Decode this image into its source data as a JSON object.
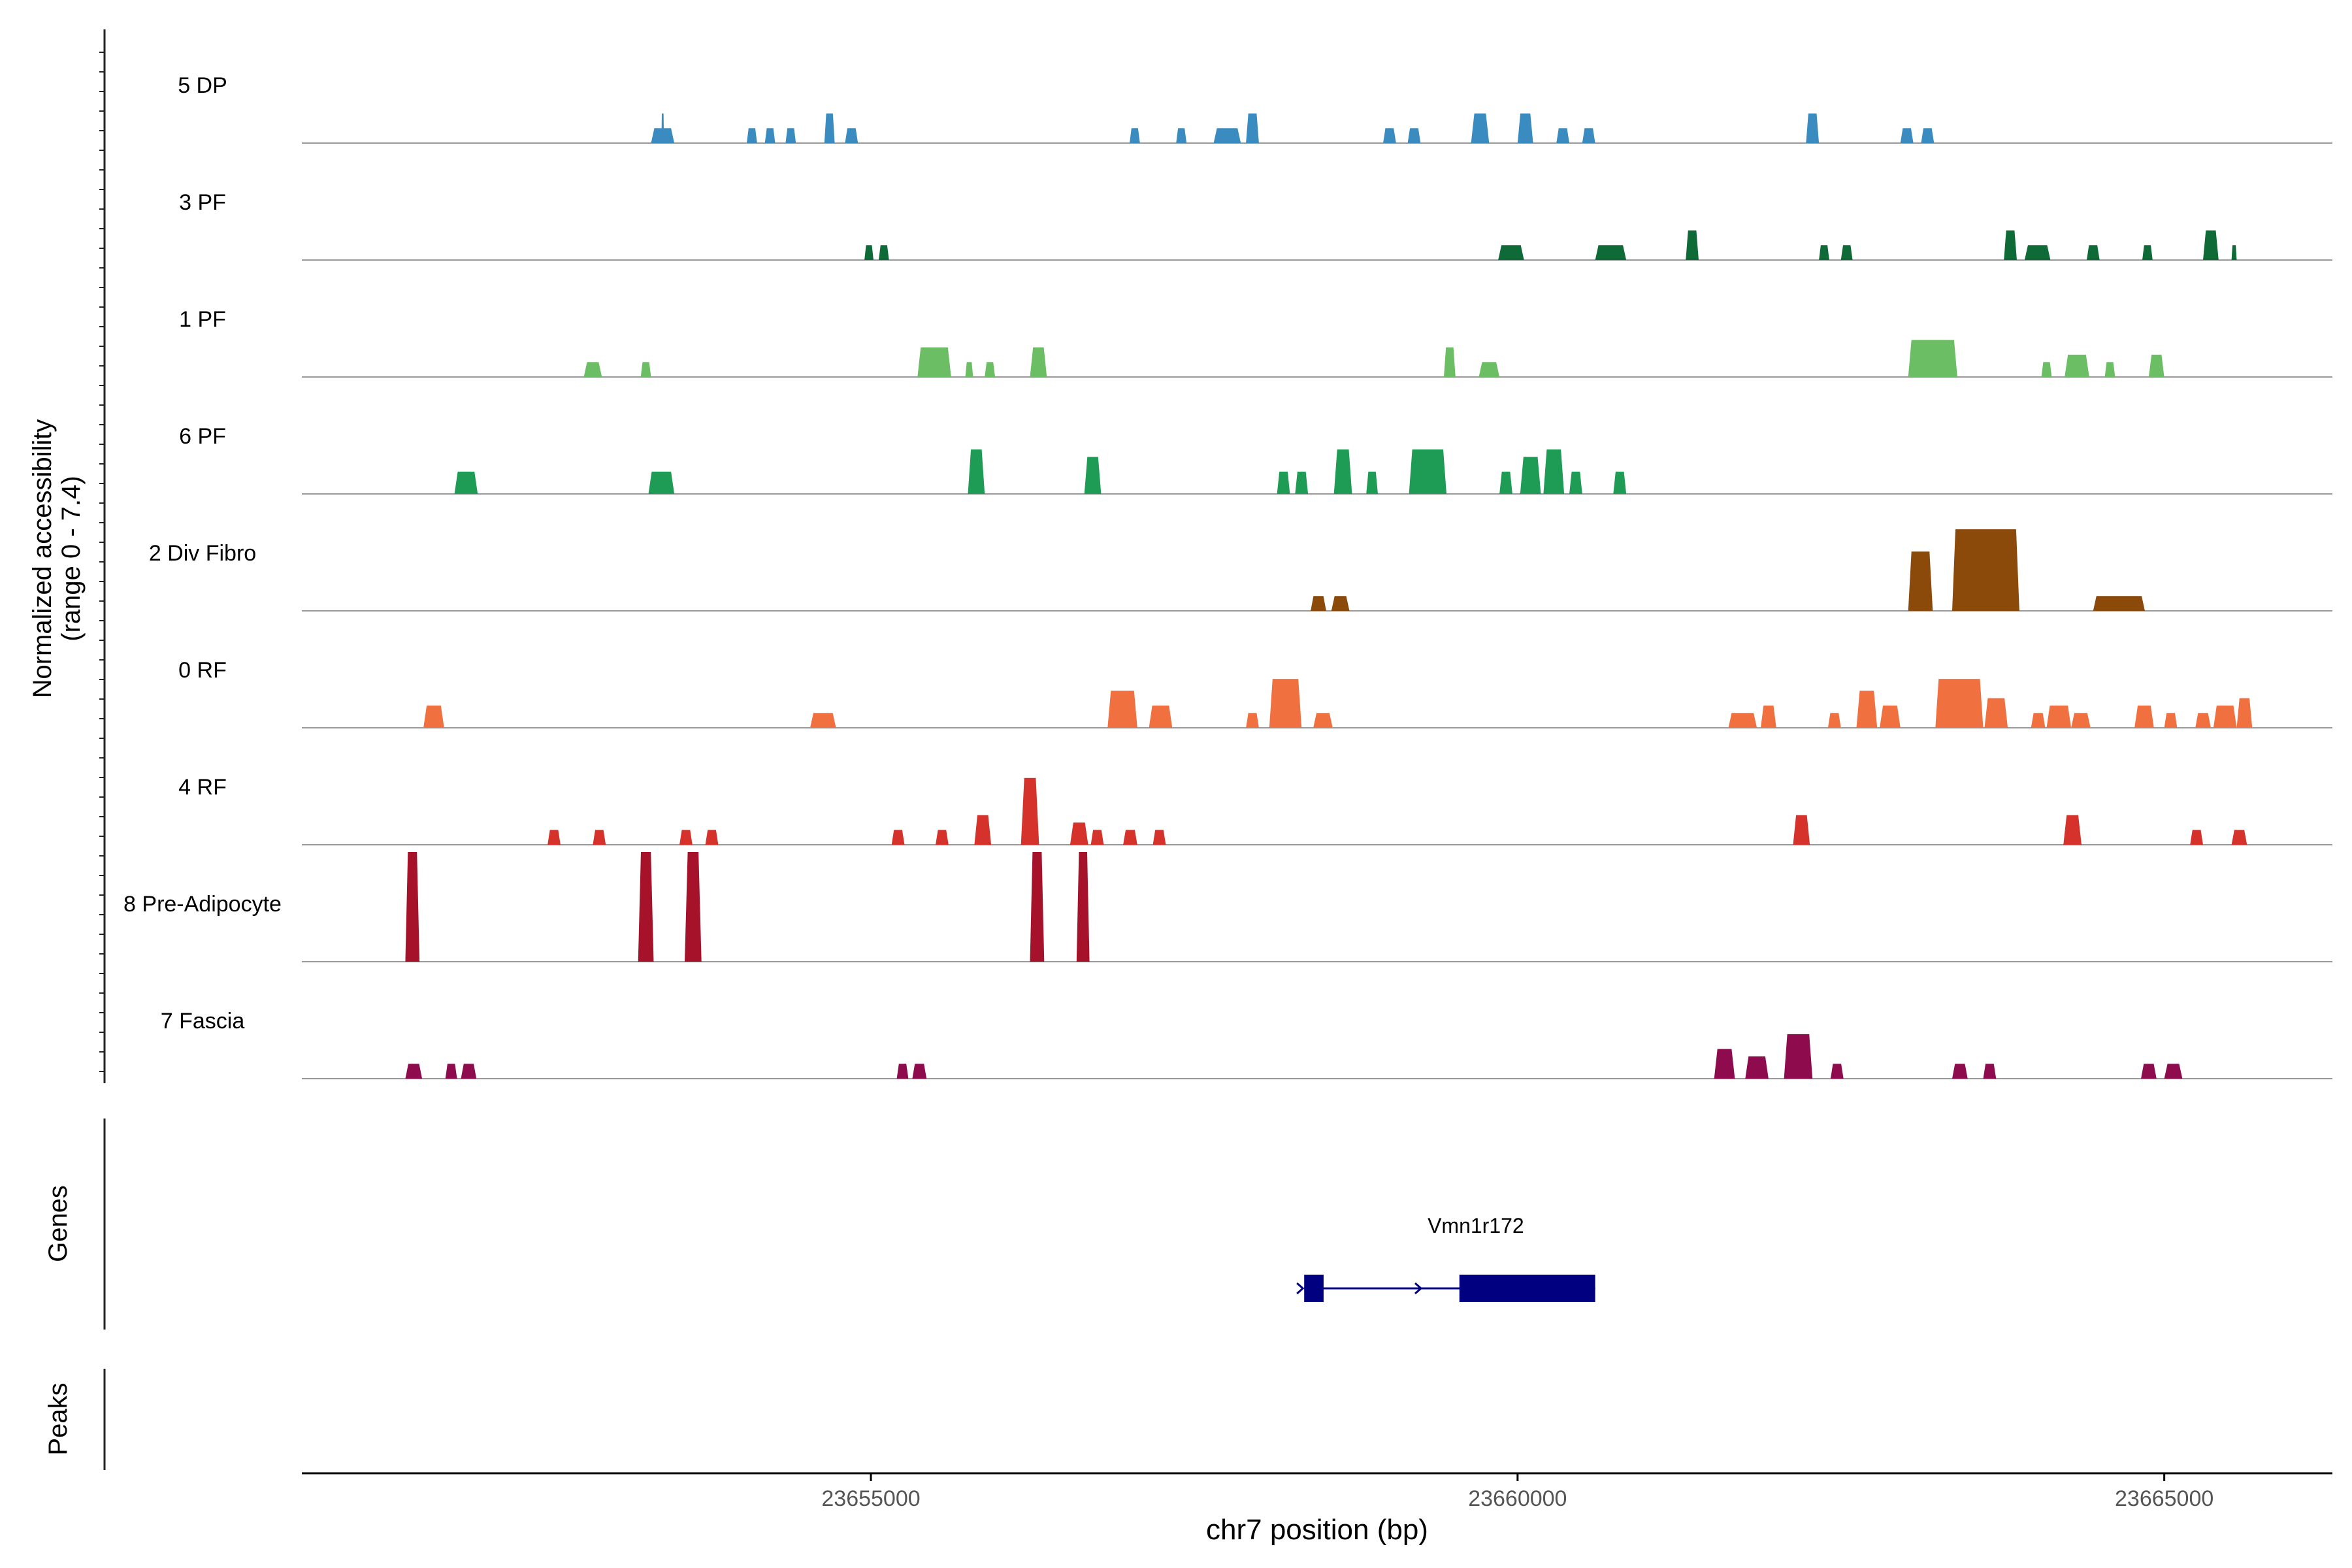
{
  "chart_data": {
    "type": "coverage-track",
    "title": "",
    "xlabel": "chr7 position (bp)",
    "xlim": [
      23650600,
      23666300
    ],
    "x_ticks": [
      {
        "value": 23655000,
        "label": "23655000"
      },
      {
        "value": 23660000,
        "label": "23660000"
      },
      {
        "value": 23665000,
        "label": "23665000"
      }
    ],
    "coverage_ylabel": "Normalized accessibility",
    "coverage_ylabel_range": "(range 0 - 7.4)",
    "ymax": 7.4,
    "genes_label": "Genes",
    "peaks_label": "Peaks",
    "series": [
      {
        "name": "5 DP",
        "color": "#3A8CC0",
        "peaks": [
          [
            23653300,
            23653480,
            1.0
          ],
          [
            23653380,
            23653400,
            2.0
          ],
          [
            23654040,
            23654120,
            1.0
          ],
          [
            23654180,
            23654260,
            1.0
          ],
          [
            23654340,
            23654420,
            1.0
          ],
          [
            23654640,
            23654720,
            2.0
          ],
          [
            23654800,
            23654900,
            1.0
          ],
          [
            23657000,
            23657080,
            1.0
          ],
          [
            23657360,
            23657440,
            1.0
          ],
          [
            23657650,
            23657860,
            1.0
          ],
          [
            23657900,
            23658000,
            2.0
          ],
          [
            23658960,
            23659060,
            1.0
          ],
          [
            23659150,
            23659250,
            1.0
          ],
          [
            23659640,
            23659780,
            2.0
          ],
          [
            23660000,
            23660120,
            2.0
          ],
          [
            23660300,
            23660400,
            1.0
          ],
          [
            23660500,
            23660600,
            1.0
          ],
          [
            23662230,
            23662330,
            2.0
          ],
          [
            23662960,
            23663060,
            1.0
          ],
          [
            23663120,
            23663220,
            1.0
          ]
        ]
      },
      {
        "name": "3 PF",
        "color": "#0E6B37",
        "peaks": [
          [
            23654950,
            23655020,
            1.0
          ],
          [
            23655060,
            23655140,
            1.0
          ],
          [
            23659850,
            23660050,
            1.0
          ],
          [
            23660600,
            23660840,
            1.0
          ],
          [
            23661300,
            23661400,
            2.0
          ],
          [
            23662330,
            23662410,
            1.0
          ],
          [
            23662500,
            23662590,
            1.0
          ],
          [
            23663760,
            23663860,
            2.0
          ],
          [
            23663920,
            23664120,
            1.0
          ],
          [
            23664400,
            23664500,
            1.0
          ],
          [
            23664830,
            23664910,
            1.0
          ],
          [
            23665300,
            23665420,
            2.0
          ],
          [
            23665520,
            23665560,
            1.0
          ]
        ]
      },
      {
        "name": "1 PF",
        "color": "#6BBE63",
        "peaks": [
          [
            23652780,
            23652920,
            1.0
          ],
          [
            23653220,
            23653300,
            1.0
          ],
          [
            23655360,
            23655620,
            2.0
          ],
          [
            23655730,
            23655790,
            1.0
          ],
          [
            23655880,
            23655960,
            1.0
          ],
          [
            23656230,
            23656360,
            2.0
          ],
          [
            23659430,
            23659520,
            2.0
          ],
          [
            23659700,
            23659860,
            1.0
          ],
          [
            23663020,
            23663400,
            2.5
          ],
          [
            23664050,
            23664130,
            1.0
          ],
          [
            23664230,
            23664420,
            1.5
          ],
          [
            23664540,
            23664620,
            1.0
          ],
          [
            23664880,
            23665000,
            1.5
          ]
        ]
      },
      {
        "name": "6 PF",
        "color": "#1E9B55",
        "peaks": [
          [
            23651780,
            23651960,
            1.5
          ],
          [
            23653280,
            23653480,
            1.5
          ],
          [
            23655750,
            23655880,
            3.0
          ],
          [
            23656650,
            23656780,
            2.5
          ],
          [
            23658140,
            23658240,
            1.5
          ],
          [
            23658280,
            23658380,
            1.5
          ],
          [
            23658580,
            23658720,
            3.0
          ],
          [
            23658830,
            23658920,
            1.5
          ],
          [
            23659160,
            23659450,
            3.0
          ],
          [
            23659860,
            23659960,
            1.5
          ],
          [
            23660020,
            23660180,
            2.5
          ],
          [
            23660200,
            23660360,
            3.0
          ],
          [
            23660400,
            23660500,
            1.5
          ],
          [
            23660740,
            23660840,
            1.5
          ]
        ]
      },
      {
        "name": "2 Div Fibro",
        "color": "#8B4A0A",
        "peaks": [
          [
            23658400,
            23658520,
            1.0
          ],
          [
            23658560,
            23658700,
            1.0
          ],
          [
            23663020,
            23663210,
            4.0
          ],
          [
            23663360,
            23663880,
            5.5
          ],
          [
            23664450,
            23664850,
            1.0
          ]
        ]
      },
      {
        "name": "0 RF",
        "color": "#F07040",
        "peaks": [
          [
            23651540,
            23651700,
            1.5
          ],
          [
            23654530,
            23654730,
            1.0
          ],
          [
            23656830,
            23657060,
            2.5
          ],
          [
            23657150,
            23657330,
            1.5
          ],
          [
            23657900,
            23658000,
            1.0
          ],
          [
            23658080,
            23658330,
            3.3
          ],
          [
            23658420,
            23658570,
            1.0
          ],
          [
            23661630,
            23661850,
            1.0
          ],
          [
            23661880,
            23662000,
            1.5
          ],
          [
            23662400,
            23662500,
            1.0
          ],
          [
            23662620,
            23662780,
            2.5
          ],
          [
            23662800,
            23662960,
            1.5
          ],
          [
            23663230,
            23663600,
            3.3
          ],
          [
            23663610,
            23663790,
            2.0
          ],
          [
            23663970,
            23664080,
            1.0
          ],
          [
            23664090,
            23664280,
            1.5
          ],
          [
            23664280,
            23664430,
            1.0
          ],
          [
            23664770,
            23664920,
            1.5
          ],
          [
            23665000,
            23665100,
            1.0
          ],
          [
            23665240,
            23665360,
            1.0
          ],
          [
            23665380,
            23665560,
            1.5
          ],
          [
            23665560,
            23665680,
            2.0
          ]
        ]
      },
      {
        "name": "4 RF",
        "color": "#D4322A",
        "peaks": [
          [
            23652500,
            23652600,
            1.0
          ],
          [
            23652850,
            23652950,
            1.0
          ],
          [
            23653520,
            23653620,
            1.0
          ],
          [
            23653720,
            23653820,
            1.0
          ],
          [
            23655160,
            23655260,
            1.0
          ],
          [
            23655500,
            23655600,
            1.0
          ],
          [
            23655800,
            23655930,
            2.0
          ],
          [
            23656160,
            23656300,
            4.5
          ],
          [
            23656540,
            23656680,
            1.5
          ],
          [
            23656700,
            23656800,
            1.0
          ],
          [
            23656950,
            23657060,
            1.0
          ],
          [
            23657180,
            23657280,
            1.0
          ],
          [
            23662130,
            23662260,
            2.0
          ],
          [
            23664220,
            23664360,
            2.0
          ],
          [
            23665200,
            23665300,
            1.0
          ],
          [
            23665520,
            23665640,
            1.0
          ]
        ]
      },
      {
        "name": "8 Pre-Adipocyte",
        "color": "#A5122A",
        "peaks": [
          [
            23651400,
            23651510,
            7.4
          ],
          [
            23653200,
            23653320,
            7.4
          ],
          [
            23653560,
            23653690,
            7.4
          ],
          [
            23656230,
            23656340,
            7.4
          ],
          [
            23656590,
            23656690,
            7.4
          ]
        ]
      },
      {
        "name": "7 Fascia",
        "color": "#8E0B4E",
        "peaks": [
          [
            23651400,
            23651530,
            1.0
          ],
          [
            23651710,
            23651800,
            1.0
          ],
          [
            23651830,
            23651950,
            1.0
          ],
          [
            23655200,
            23655290,
            1.0
          ],
          [
            23655320,
            23655430,
            1.0
          ],
          [
            23661520,
            23661680,
            2.0
          ],
          [
            23661760,
            23661940,
            1.5
          ],
          [
            23662060,
            23662280,
            3.0
          ],
          [
            23662420,
            23662520,
            1.0
          ],
          [
            23663360,
            23663480,
            1.0
          ],
          [
            23663600,
            23663700,
            1.0
          ],
          [
            23664820,
            23664940,
            1.0
          ],
          [
            23665000,
            23665140,
            1.0
          ]
        ]
      }
    ],
    "genes": [
      {
        "name": "Vmn1r172",
        "strand": "+",
        "start": 23658350,
        "end": 23660600,
        "exons": [
          [
            23658350,
            23658500
          ],
          [
            23659550,
            23660600
          ]
        ]
      }
    ]
  }
}
